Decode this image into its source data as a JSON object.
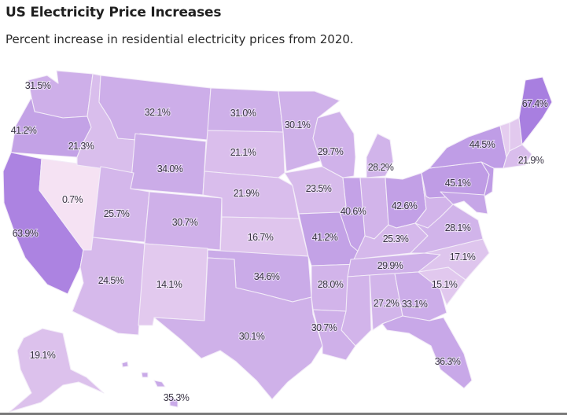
{
  "header": {
    "title": "US Electricity Price Increases",
    "subtitle": "Percent increase in residential electricity prices from 2020."
  },
  "legend": {
    "color_low": "#f7e4f3",
    "color_high": "#a87fe0"
  },
  "map_data": {
    "type": "choropleth",
    "region": "United States",
    "metric": "Percent increase in residential electricity prices from 2020",
    "states": [
      {
        "id": "WA",
        "name": "Washington",
        "value": 31.5,
        "label": "31.5%"
      },
      {
        "id": "OR",
        "name": "Oregon",
        "value": 41.2,
        "label": "41.2%"
      },
      {
        "id": "CA",
        "name": "California",
        "value": 63.9,
        "label": "63.9%"
      },
      {
        "id": "NV",
        "name": "Nevada",
        "value": 0.7,
        "label": "0.7%"
      },
      {
        "id": "ID",
        "name": "Idaho",
        "value": 21.3,
        "label": "21.3%"
      },
      {
        "id": "MT",
        "name": "Montana",
        "value": 32.1,
        "label": "32.1%"
      },
      {
        "id": "WY",
        "name": "Wyoming",
        "value": 34.0,
        "label": "34.0%"
      },
      {
        "id": "UT",
        "name": "Utah",
        "value": 25.7,
        "label": "25.7%"
      },
      {
        "id": "AZ",
        "name": "Arizona",
        "value": 24.5,
        "label": "24.5%"
      },
      {
        "id": "CO",
        "name": "Colorado",
        "value": 30.7,
        "label": "30.7%"
      },
      {
        "id": "NM",
        "name": "New Mexico",
        "value": 14.1,
        "label": "14.1%"
      },
      {
        "id": "ND",
        "name": "North Dakota",
        "value": 31.0,
        "label": "31.0%"
      },
      {
        "id": "SD",
        "name": "South Dakota",
        "value": 21.1,
        "label": "21.1%"
      },
      {
        "id": "NE",
        "name": "Nebraska",
        "value": 21.9,
        "label": "21.9%"
      },
      {
        "id": "KS",
        "name": "Kansas",
        "value": 16.7,
        "label": "16.7%"
      },
      {
        "id": "OK",
        "name": "Oklahoma",
        "value": 34.6,
        "label": "34.6%"
      },
      {
        "id": "TX",
        "name": "Texas",
        "value": 30.1,
        "label": "30.1%"
      },
      {
        "id": "MN",
        "name": "Minnesota",
        "value": 30.1,
        "label": "30.1%"
      },
      {
        "id": "IA",
        "name": "Iowa",
        "value": 23.5,
        "label": "23.5%"
      },
      {
        "id": "MO",
        "name": "Missouri",
        "value": 41.2,
        "label": "41.2%"
      },
      {
        "id": "AR",
        "name": "Arkansas",
        "value": 28.0,
        "label": "28.0%"
      },
      {
        "id": "LA",
        "name": "Louisiana",
        "value": 30.7,
        "label": "30.7%"
      },
      {
        "id": "WI",
        "name": "Wisconsin",
        "value": 29.7,
        "label": "29.7%"
      },
      {
        "id": "IL",
        "name": "Illinois",
        "value": 40.6,
        "label": "40.6%"
      },
      {
        "id": "MI",
        "name": "Michigan",
        "value": 28.2,
        "label": "28.2%"
      },
      {
        "id": "IN",
        "name": "Indiana",
        "value": null,
        "label": ""
      },
      {
        "id": "OH",
        "name": "Ohio",
        "value": 42.6,
        "label": "42.6%"
      },
      {
        "id": "KY",
        "name": "Kentucky",
        "value": 25.3,
        "label": "25.3%"
      },
      {
        "id": "TN",
        "name": "Tennessee",
        "value": 29.9,
        "label": "29.9%"
      },
      {
        "id": "MS",
        "name": "Mississippi",
        "value": null,
        "label": ""
      },
      {
        "id": "AL",
        "name": "Alabama",
        "value": 27.2,
        "label": "27.2%"
      },
      {
        "id": "GA",
        "name": "Georgia",
        "value": 33.1,
        "label": "33.1%"
      },
      {
        "id": "FL",
        "name": "Florida",
        "value": 36.3,
        "label": "36.3%"
      },
      {
        "id": "SC",
        "name": "South Carolina",
        "value": 15.1,
        "label": "15.1%"
      },
      {
        "id": "NC",
        "name": "North Carolina",
        "value": 17.1,
        "label": "17.1%"
      },
      {
        "id": "VA",
        "name": "Virginia",
        "value": 28.1,
        "label": "28.1%"
      },
      {
        "id": "WV",
        "name": "West Virginia",
        "value": null,
        "label": ""
      },
      {
        "id": "PA",
        "name": "Pennsylvania",
        "value": 45.1,
        "label": "45.1%"
      },
      {
        "id": "NY",
        "name": "New York",
        "value": 44.5,
        "label": "44.5%"
      },
      {
        "id": "MA",
        "name": "Massachusetts",
        "value": 21.9,
        "label": "21.9%"
      },
      {
        "id": "ME",
        "name": "Maine",
        "value": 67.4,
        "label": "67.4%"
      },
      {
        "id": "AK",
        "name": "Alaska",
        "value": 19.1,
        "label": "19.1%"
      },
      {
        "id": "HI",
        "name": "Hawaii",
        "value": 35.3,
        "label": "35.3%"
      }
    ]
  }
}
